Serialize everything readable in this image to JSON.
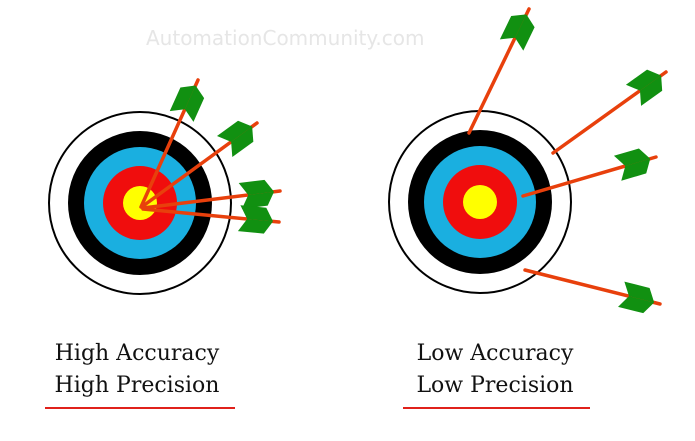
{
  "watermark": "AutomationCommunity.com",
  "colors": {
    "ring_white": "#ffffff",
    "ring_black": "#000000",
    "ring_blue": "#1aafe0",
    "ring_red": "#f00d0d",
    "ring_yellow": "#ffff00",
    "shaft": "#e8400c",
    "fletching": "#119011",
    "underline": "#e0211b"
  },
  "targets": [
    {
      "line1": "High Accuracy",
      "line2": "High Precision"
    },
    {
      "line1": "Low Accuracy",
      "line2": "Low Precision"
    }
  ]
}
